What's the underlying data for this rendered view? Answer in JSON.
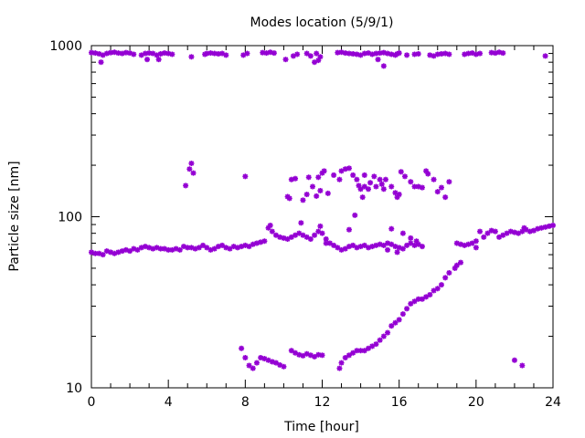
{
  "chart_data": {
    "type": "scatter",
    "title": "Modes location (5/9/1)",
    "xlabel": "Time [hour]",
    "ylabel": "Particle size [nm]",
    "xlim": [
      0,
      24
    ],
    "ylim": [
      10,
      1000
    ],
    "y_scale": "log",
    "x_ticks": [
      0,
      4,
      8,
      12,
      16,
      20,
      24
    ],
    "x_tick_labels": [
      "0",
      "4",
      "8",
      "12",
      "16",
      "20",
      "24"
    ],
    "y_ticks": [
      10,
      100,
      1000
    ],
    "y_tick_labels": [
      "10",
      "100",
      "1000"
    ],
    "grid": false,
    "marker_color": "#9400d3",
    "series": [
      {
        "points": [
          [
            0.0,
            910
          ],
          [
            0.2,
            905
          ],
          [
            0.4,
            895
          ],
          [
            0.6,
            880
          ],
          [
            0.8,
            900
          ],
          [
            1.0,
            910
          ],
          [
            1.2,
            915
          ],
          [
            1.4,
            905
          ],
          [
            1.6,
            900
          ],
          [
            1.8,
            910
          ],
          [
            2.0,
            905
          ],
          [
            2.2,
            890
          ],
          [
            2.6,
            880
          ],
          [
            2.8,
            900
          ],
          [
            3.0,
            905
          ],
          [
            3.2,
            900
          ],
          [
            3.4,
            880
          ],
          [
            3.6,
            895
          ],
          [
            3.8,
            905
          ],
          [
            4.0,
            900
          ],
          [
            4.2,
            890
          ],
          [
            0.5,
            800
          ],
          [
            2.9,
            830
          ],
          [
            3.5,
            830
          ],
          [
            5.2,
            860
          ],
          [
            5.9,
            890
          ],
          [
            6.0,
            900
          ],
          [
            6.2,
            905
          ],
          [
            6.4,
            900
          ],
          [
            6.6,
            895
          ],
          [
            6.8,
            900
          ],
          [
            7.0,
            880
          ],
          [
            7.9,
            880
          ],
          [
            8.1,
            900
          ],
          [
            8.9,
            910
          ],
          [
            9.1,
            905
          ],
          [
            9.3,
            915
          ],
          [
            9.5,
            905
          ],
          [
            10.1,
            830
          ],
          [
            10.5,
            870
          ],
          [
            10.7,
            890
          ],
          [
            11.2,
            900
          ],
          [
            11.4,
            870
          ],
          [
            11.7,
            900
          ],
          [
            11.9,
            860
          ],
          [
            11.8,
            820
          ],
          [
            11.6,
            800
          ],
          [
            12.8,
            910
          ],
          [
            13.0,
            915
          ],
          [
            13.2,
            905
          ],
          [
            13.4,
            900
          ],
          [
            13.6,
            895
          ],
          [
            13.8,
            890
          ],
          [
            14.0,
            880
          ],
          [
            14.2,
            900
          ],
          [
            14.4,
            905
          ],
          [
            14.6,
            890
          ],
          [
            14.8,
            900
          ],
          [
            15.0,
            905
          ],
          [
            15.2,
            910
          ],
          [
            15.4,
            900
          ],
          [
            15.6,
            890
          ],
          [
            15.8,
            880
          ],
          [
            15.9,
            895
          ],
          [
            16.0,
            905
          ],
          [
            15.2,
            760
          ],
          [
            14.9,
            830
          ],
          [
            16.4,
            880
          ],
          [
            16.8,
            890
          ],
          [
            17.0,
            895
          ],
          [
            17.6,
            880
          ],
          [
            17.8,
            870
          ],
          [
            18.0,
            890
          ],
          [
            18.2,
            895
          ],
          [
            18.4,
            900
          ],
          [
            18.6,
            890
          ],
          [
            19.4,
            890
          ],
          [
            19.6,
            900
          ],
          [
            19.8,
            905
          ],
          [
            20.0,
            890
          ],
          [
            20.2,
            900
          ],
          [
            20.8,
            910
          ],
          [
            21.0,
            905
          ],
          [
            21.2,
            915
          ],
          [
            21.4,
            905
          ],
          [
            23.6,
            870
          ],
          [
            4.9,
            152
          ],
          [
            5.1,
            190
          ],
          [
            5.2,
            205
          ],
          [
            5.3,
            180
          ],
          [
            8.0,
            172
          ],
          [
            10.2,
            131
          ],
          [
            10.3,
            128
          ],
          [
            10.4,
            165
          ],
          [
            10.6,
            167
          ],
          [
            11.0,
            125
          ],
          [
            11.2,
            135
          ],
          [
            11.3,
            170
          ],
          [
            11.5,
            150
          ],
          [
            11.7,
            132
          ],
          [
            11.8,
            170
          ],
          [
            11.9,
            142
          ],
          [
            12.0,
            180
          ],
          [
            12.1,
            185
          ],
          [
            12.3,
            137
          ],
          [
            12.6,
            175
          ],
          [
            12.9,
            165
          ],
          [
            13.0,
            185
          ],
          [
            13.2,
            190
          ],
          [
            13.4,
            192
          ],
          [
            13.6,
            175
          ],
          [
            13.8,
            165
          ],
          [
            13.9,
            152
          ],
          [
            14.0,
            145
          ],
          [
            14.1,
            130
          ],
          [
            14.2,
            150
          ],
          [
            14.4,
            145
          ],
          [
            14.5,
            158
          ],
          [
            14.8,
            150
          ],
          [
            15.0,
            165
          ],
          [
            15.1,
            155
          ],
          [
            15.2,
            145
          ],
          [
            15.3,
            165
          ],
          [
            15.6,
            150
          ],
          [
            15.8,
            138
          ],
          [
            15.9,
            130
          ],
          [
            16.0,
            135
          ],
          [
            16.1,
            183
          ],
          [
            16.3,
            172
          ],
          [
            16.6,
            160
          ],
          [
            16.8,
            150
          ],
          [
            17.0,
            150
          ],
          [
            17.2,
            148
          ],
          [
            17.4,
            185
          ],
          [
            17.5,
            178
          ],
          [
            17.8,
            165
          ],
          [
            18.0,
            140
          ],
          [
            18.2,
            148
          ],
          [
            18.4,
            130
          ],
          [
            18.6,
            160
          ],
          [
            13.7,
            102
          ],
          [
            14.2,
            175
          ],
          [
            14.7,
            172
          ],
          [
            0.0,
            62
          ],
          [
            0.2,
            61
          ],
          [
            0.4,
            61
          ],
          [
            0.6,
            60
          ],
          [
            0.8,
            63
          ],
          [
            1.0,
            62
          ],
          [
            1.2,
            61
          ],
          [
            1.4,
            62
          ],
          [
            1.6,
            63
          ],
          [
            1.8,
            64
          ],
          [
            2.0,
            63
          ],
          [
            2.2,
            65
          ],
          [
            2.4,
            64
          ],
          [
            2.6,
            66
          ],
          [
            2.8,
            67
          ],
          [
            3.0,
            66
          ],
          [
            3.2,
            65
          ],
          [
            3.4,
            66
          ],
          [
            3.6,
            65
          ],
          [
            3.8,
            65
          ],
          [
            4.0,
            64
          ],
          [
            4.2,
            64
          ],
          [
            4.4,
            65
          ],
          [
            4.6,
            64
          ],
          [
            4.8,
            67
          ],
          [
            5.0,
            66
          ],
          [
            5.2,
            66
          ],
          [
            5.4,
            65
          ],
          [
            5.6,
            66
          ],
          [
            5.8,
            68
          ],
          [
            6.0,
            66
          ],
          [
            6.2,
            64
          ],
          [
            6.4,
            65
          ],
          [
            6.6,
            67
          ],
          [
            6.8,
            68
          ],
          [
            7.0,
            66
          ],
          [
            7.2,
            65
          ],
          [
            7.4,
            67
          ],
          [
            7.6,
            66
          ],
          [
            7.8,
            67
          ],
          [
            8.0,
            68
          ],
          [
            8.2,
            67
          ],
          [
            8.4,
            69
          ],
          [
            8.6,
            70
          ],
          [
            8.8,
            71
          ],
          [
            9.0,
            72
          ],
          [
            9.2,
            86
          ],
          [
            9.4,
            82
          ],
          [
            9.6,
            78
          ],
          [
            9.8,
            76
          ],
          [
            10.0,
            75
          ],
          [
            10.2,
            74
          ],
          [
            10.4,
            76
          ],
          [
            10.6,
            78
          ],
          [
            10.8,
            80
          ],
          [
            11.0,
            78
          ],
          [
            11.2,
            76
          ],
          [
            11.4,
            74
          ],
          [
            11.6,
            78
          ],
          [
            11.8,
            82
          ],
          [
            12.0,
            80
          ],
          [
            12.2,
            74
          ],
          [
            12.4,
            70
          ],
          [
            12.6,
            68
          ],
          [
            12.8,
            66
          ],
          [
            13.0,
            64
          ],
          [
            13.2,
            65
          ],
          [
            13.4,
            67
          ],
          [
            13.6,
            68
          ],
          [
            13.8,
            66
          ],
          [
            14.0,
            67
          ],
          [
            14.2,
            68
          ],
          [
            14.4,
            66
          ],
          [
            14.6,
            67
          ],
          [
            14.8,
            68
          ],
          [
            15.0,
            69
          ],
          [
            15.2,
            68
          ],
          [
            15.4,
            70
          ],
          [
            15.6,
            69
          ],
          [
            15.8,
            67
          ],
          [
            16.0,
            66
          ],
          [
            16.2,
            65
          ],
          [
            16.4,
            68
          ],
          [
            16.6,
            70
          ],
          [
            16.8,
            68
          ],
          [
            17.0,
            69
          ],
          [
            17.2,
            67
          ],
          [
            10.9,
            92
          ],
          [
            11.9,
            88
          ],
          [
            13.4,
            84
          ],
          [
            15.6,
            85
          ],
          [
            16.2,
            80
          ],
          [
            16.6,
            75
          ],
          [
            16.9,
            72
          ],
          [
            9.3,
            89
          ],
          [
            15.9,
            62
          ],
          [
            15.4,
            64
          ],
          [
            12.2,
            70
          ],
          [
            19.0,
            70
          ],
          [
            19.2,
            69
          ],
          [
            19.4,
            68
          ],
          [
            19.6,
            69
          ],
          [
            19.8,
            70
          ],
          [
            20.0,
            72
          ],
          [
            20.2,
            82
          ],
          [
            20.4,
            76
          ],
          [
            20.6,
            80
          ],
          [
            20.8,
            83
          ],
          [
            21.0,
            82
          ],
          [
            21.2,
            76
          ],
          [
            21.4,
            78
          ],
          [
            21.6,
            80
          ],
          [
            21.8,
            82
          ],
          [
            22.0,
            81
          ],
          [
            22.2,
            80
          ],
          [
            22.4,
            82
          ],
          [
            22.6,
            84
          ],
          [
            22.8,
            82
          ],
          [
            23.0,
            83
          ],
          [
            23.2,
            85
          ],
          [
            23.4,
            86
          ],
          [
            23.6,
            87
          ],
          [
            23.8,
            88
          ],
          [
            24.0,
            89
          ],
          [
            20.0,
            66
          ],
          [
            22.5,
            86
          ],
          [
            19.2,
            54
          ],
          [
            19.0,
            52
          ],
          [
            18.9,
            50
          ],
          [
            18.6,
            47
          ],
          [
            18.4,
            44
          ],
          [
            18.2,
            40
          ],
          [
            18.0,
            38
          ],
          [
            17.8,
            37
          ],
          [
            17.6,
            35
          ],
          [
            17.4,
            34
          ],
          [
            17.2,
            33
          ],
          [
            17.0,
            33
          ],
          [
            16.8,
            32
          ],
          [
            16.6,
            31
          ],
          [
            16.4,
            29
          ],
          [
            16.2,
            27
          ],
          [
            16.0,
            25
          ],
          [
            15.8,
            24
          ],
          [
            15.6,
            23
          ],
          [
            15.4,
            21
          ],
          [
            15.2,
            20
          ],
          [
            15.0,
            19
          ],
          [
            14.8,
            18
          ],
          [
            14.6,
            17.5
          ],
          [
            14.4,
            17
          ],
          [
            14.2,
            16.5
          ],
          [
            14.0,
            16.5
          ],
          [
            13.8,
            16.5
          ],
          [
            13.6,
            16
          ],
          [
            13.4,
            15.5
          ],
          [
            13.2,
            15
          ],
          [
            13.0,
            14
          ],
          [
            12.9,
            13
          ],
          [
            7.8,
            17
          ],
          [
            8.0,
            15
          ],
          [
            8.2,
            13.5
          ],
          [
            8.4,
            13
          ],
          [
            8.6,
            14
          ],
          [
            8.8,
            15
          ],
          [
            9.0,
            14.8
          ],
          [
            9.2,
            14.5
          ],
          [
            9.4,
            14.2
          ],
          [
            9.6,
            14
          ],
          [
            9.8,
            13.6
          ],
          [
            10.0,
            13.3
          ],
          [
            10.4,
            16.5
          ],
          [
            10.6,
            16
          ],
          [
            10.8,
            15.6
          ],
          [
            11.0,
            15.4
          ],
          [
            11.2,
            15.8
          ],
          [
            11.4,
            15.5
          ],
          [
            11.6,
            15.2
          ],
          [
            11.8,
            15.6
          ],
          [
            12.0,
            15.5
          ],
          [
            22.0,
            14.5
          ],
          [
            22.4,
            13.5
          ]
        ]
      }
    ]
  }
}
